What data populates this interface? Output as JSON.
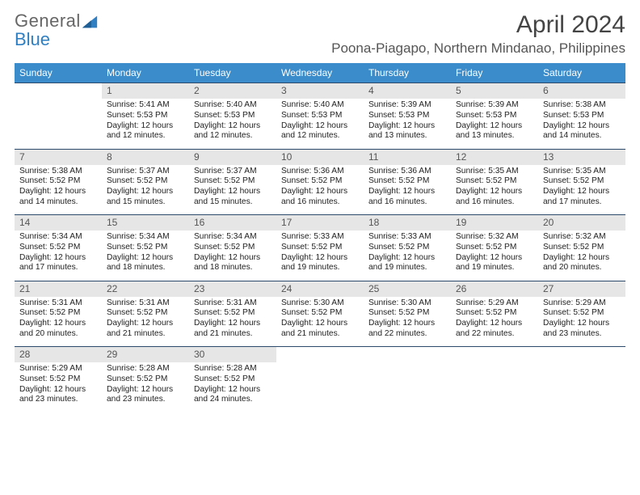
{
  "logo": {
    "word1": "General",
    "word2": "Blue"
  },
  "title": "April 2024",
  "location": "Poona-Piagapo, Northern Mindanao, Philippines",
  "style": {
    "header_bg": "#3a8ccb",
    "header_fg": "#ffffff",
    "daynum_bg": "#e6e6e6",
    "daynum_border_top": "#2c4a6b",
    "page_bg": "#ffffff",
    "title_color": "#444444",
    "location_color": "#555555",
    "cell_text_color": "#222222",
    "logo_gray": "#666666",
    "logo_blue": "#2f7fc2",
    "month_title_fontsize": 30,
    "location_fontsize": 17,
    "dayheader_fontsize": 12,
    "daynum_fontsize": 12,
    "cell_fontsize": 10.2
  },
  "day_headers": [
    "Sunday",
    "Monday",
    "Tuesday",
    "Wednesday",
    "Thursday",
    "Friday",
    "Saturday"
  ],
  "weeks": [
    {
      "nums": [
        "",
        "1",
        "2",
        "3",
        "4",
        "5",
        "6"
      ],
      "cells": [
        "",
        "Sunrise: 5:41 AM\nSunset: 5:53 PM\nDaylight: 12 hours and 12 minutes.",
        "Sunrise: 5:40 AM\nSunset: 5:53 PM\nDaylight: 12 hours and 12 minutes.",
        "Sunrise: 5:40 AM\nSunset: 5:53 PM\nDaylight: 12 hours and 12 minutes.",
        "Sunrise: 5:39 AM\nSunset: 5:53 PM\nDaylight: 12 hours and 13 minutes.",
        "Sunrise: 5:39 AM\nSunset: 5:53 PM\nDaylight: 12 hours and 13 minutes.",
        "Sunrise: 5:38 AM\nSunset: 5:53 PM\nDaylight: 12 hours and 14 minutes."
      ]
    },
    {
      "nums": [
        "7",
        "8",
        "9",
        "10",
        "11",
        "12",
        "13"
      ],
      "cells": [
        "Sunrise: 5:38 AM\nSunset: 5:52 PM\nDaylight: 12 hours and 14 minutes.",
        "Sunrise: 5:37 AM\nSunset: 5:52 PM\nDaylight: 12 hours and 15 minutes.",
        "Sunrise: 5:37 AM\nSunset: 5:52 PM\nDaylight: 12 hours and 15 minutes.",
        "Sunrise: 5:36 AM\nSunset: 5:52 PM\nDaylight: 12 hours and 16 minutes.",
        "Sunrise: 5:36 AM\nSunset: 5:52 PM\nDaylight: 12 hours and 16 minutes.",
        "Sunrise: 5:35 AM\nSunset: 5:52 PM\nDaylight: 12 hours and 16 minutes.",
        "Sunrise: 5:35 AM\nSunset: 5:52 PM\nDaylight: 12 hours and 17 minutes."
      ]
    },
    {
      "nums": [
        "14",
        "15",
        "16",
        "17",
        "18",
        "19",
        "20"
      ],
      "cells": [
        "Sunrise: 5:34 AM\nSunset: 5:52 PM\nDaylight: 12 hours and 17 minutes.",
        "Sunrise: 5:34 AM\nSunset: 5:52 PM\nDaylight: 12 hours and 18 minutes.",
        "Sunrise: 5:34 AM\nSunset: 5:52 PM\nDaylight: 12 hours and 18 minutes.",
        "Sunrise: 5:33 AM\nSunset: 5:52 PM\nDaylight: 12 hours and 19 minutes.",
        "Sunrise: 5:33 AM\nSunset: 5:52 PM\nDaylight: 12 hours and 19 minutes.",
        "Sunrise: 5:32 AM\nSunset: 5:52 PM\nDaylight: 12 hours and 19 minutes.",
        "Sunrise: 5:32 AM\nSunset: 5:52 PM\nDaylight: 12 hours and 20 minutes."
      ]
    },
    {
      "nums": [
        "21",
        "22",
        "23",
        "24",
        "25",
        "26",
        "27"
      ],
      "cells": [
        "Sunrise: 5:31 AM\nSunset: 5:52 PM\nDaylight: 12 hours and 20 minutes.",
        "Sunrise: 5:31 AM\nSunset: 5:52 PM\nDaylight: 12 hours and 21 minutes.",
        "Sunrise: 5:31 AM\nSunset: 5:52 PM\nDaylight: 12 hours and 21 minutes.",
        "Sunrise: 5:30 AM\nSunset: 5:52 PM\nDaylight: 12 hours and 21 minutes.",
        "Sunrise: 5:30 AM\nSunset: 5:52 PM\nDaylight: 12 hours and 22 minutes.",
        "Sunrise: 5:29 AM\nSunset: 5:52 PM\nDaylight: 12 hours and 22 minutes.",
        "Sunrise: 5:29 AM\nSunset: 5:52 PM\nDaylight: 12 hours and 23 minutes."
      ]
    },
    {
      "nums": [
        "28",
        "29",
        "30",
        "",
        "",
        "",
        ""
      ],
      "cells": [
        "Sunrise: 5:29 AM\nSunset: 5:52 PM\nDaylight: 12 hours and 23 minutes.",
        "Sunrise: 5:28 AM\nSunset: 5:52 PM\nDaylight: 12 hours and 23 minutes.",
        "Sunrise: 5:28 AM\nSunset: 5:52 PM\nDaylight: 12 hours and 24 minutes.",
        "",
        "",
        "",
        ""
      ]
    }
  ]
}
